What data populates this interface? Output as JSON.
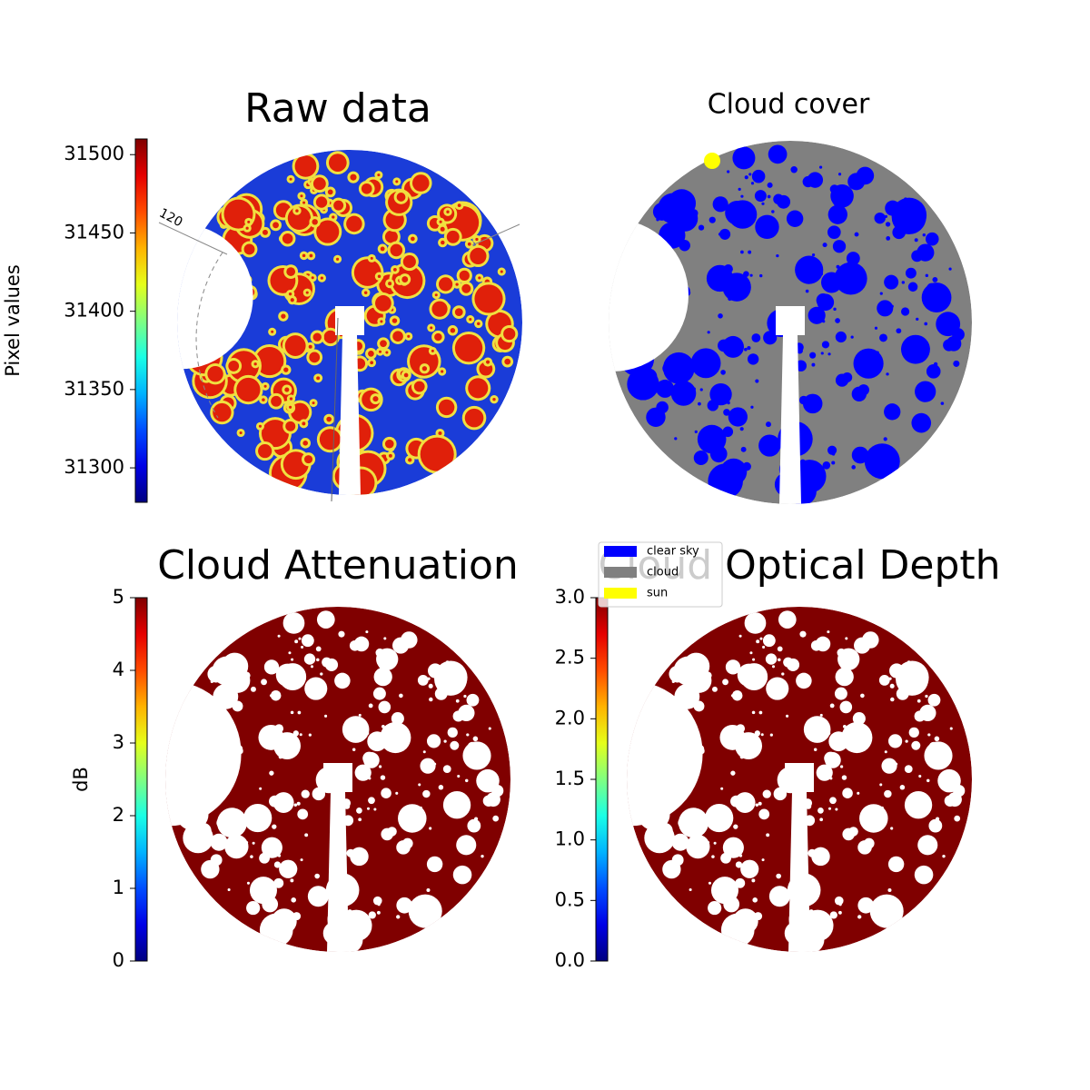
{
  "chart_data": [
    {
      "type": "image",
      "title": "Raw data",
      "colorbar_label": "Pixel values",
      "colormap": "jet",
      "clim": [
        31278,
        31510
      ],
      "cticks": [
        31300,
        31350,
        31400,
        31450,
        31500
      ],
      "annotation": "120"
    },
    {
      "type": "mask",
      "title": "Cloud cover",
      "series": [
        {
          "name": "clear sky",
          "color": "#0000ff"
        },
        {
          "name": "cloud",
          "color": "#808080"
        },
        {
          "name": "sun",
          "color": "#ffff00"
        }
      ]
    },
    {
      "type": "image",
      "title": "Cloud Attenuation",
      "colorbar_label": "dB",
      "colormap": "jet",
      "clim": [
        0,
        5
      ],
      "cticks": [
        0,
        1,
        2,
        3,
        4,
        5
      ]
    },
    {
      "type": "image",
      "title": "Cloud Optical Depth",
      "colormap": "jet",
      "clim": [
        0,
        3
      ],
      "cticks": [
        {
          "value": 0,
          "label": "0.0"
        },
        0.5,
        {
          "value": 1,
          "label": "1.0"
        },
        1.5,
        {
          "value": 2,
          "label": "2.0"
        },
        2.5,
        {
          "value": 3,
          "label": "3.0"
        }
      ]
    }
  ]
}
